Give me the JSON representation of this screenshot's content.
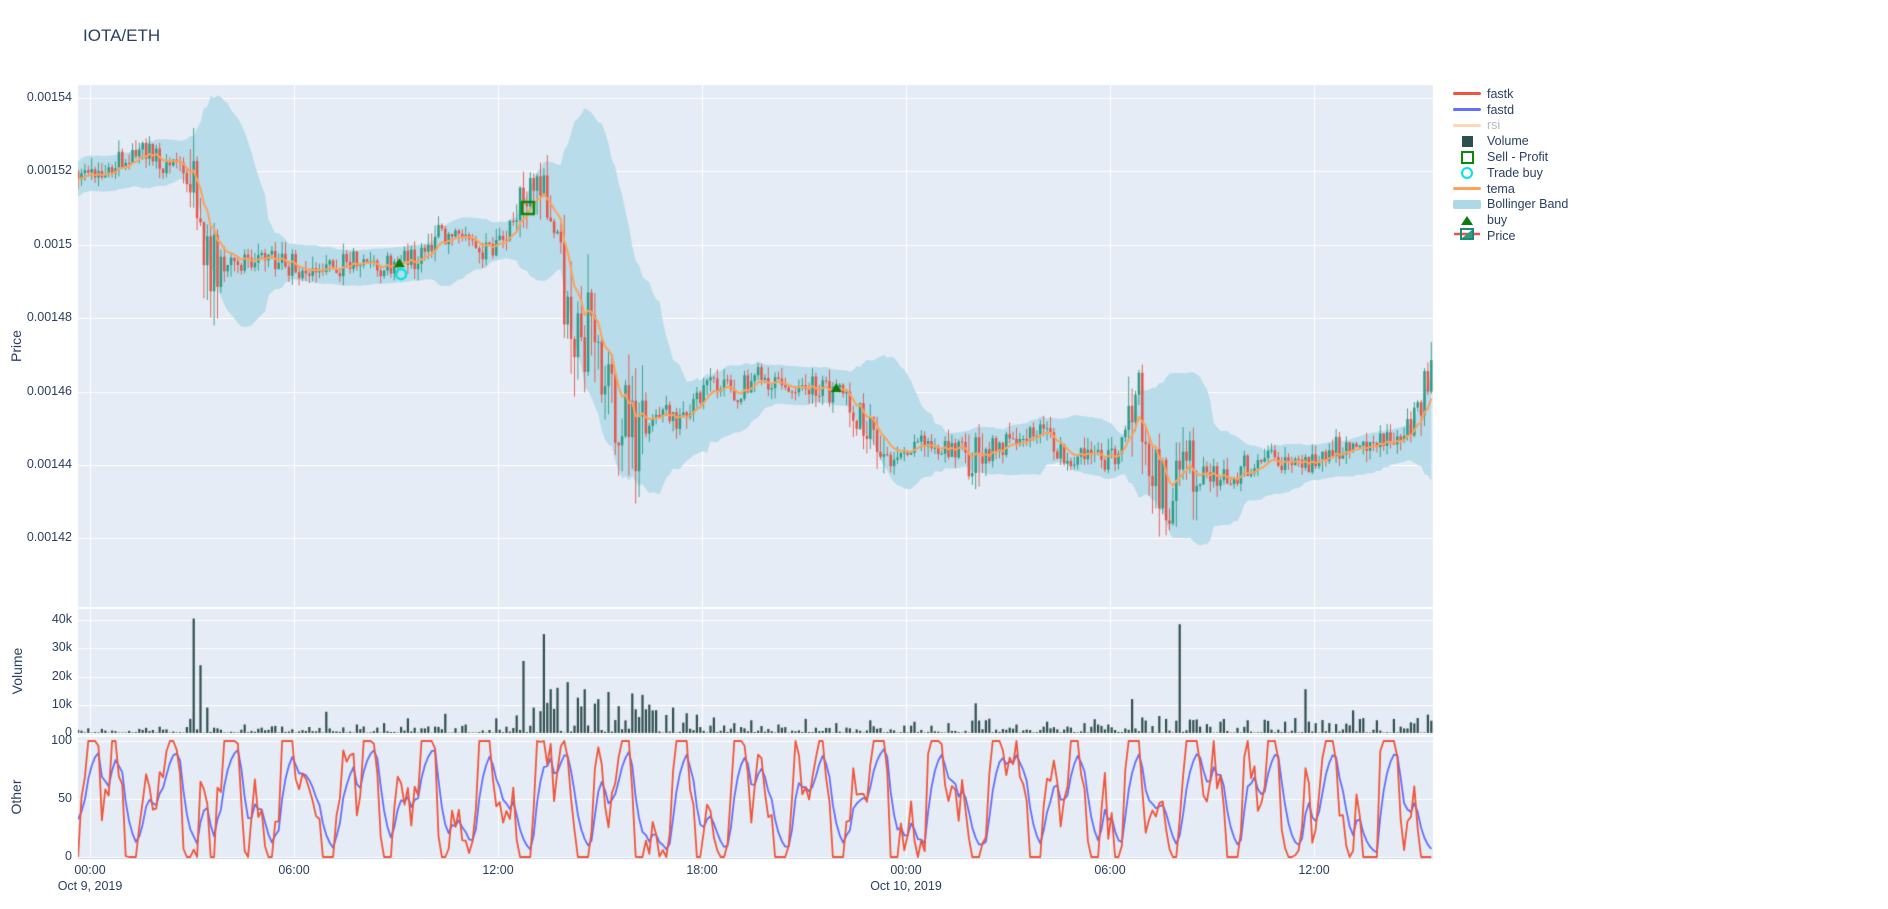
{
  "title": "IOTA/ETH",
  "colors": {
    "paper_bg": "#ffffff",
    "plot_bg": "#E6ECF5",
    "grid": "#ffffff",
    "text": "#2a3f5f",
    "faded_text": "#b2bac9",
    "candle_up": "#2E9C86",
    "candle_down": "#E4564A",
    "tema": "#FFA15A",
    "rsi": "#FFA15A",
    "bollinger": "rgba(173,216,230,0.82)",
    "volume_bar": "#2F4F4F",
    "fastk": "#EF553B",
    "fastd": "#636EFA",
    "buy_marker": "#0a7d0a",
    "sell_profit_marker": "#0a8a0a",
    "trade_buy_marker": "#00e5e5"
  },
  "axes": {
    "price": {
      "title": "Price",
      "ticks": [
        "0.00154",
        "0.00152",
        "0.0015",
        "0.00148",
        "0.00146",
        "0.00144",
        "0.00142"
      ],
      "tick_values": [
        0.00154,
        0.00152,
        0.0015,
        0.00148,
        0.00146,
        0.00144,
        0.00142
      ]
    },
    "volume": {
      "title": "Volume",
      "ticks": [
        "40k",
        "30k",
        "20k",
        "10k",
        "0"
      ],
      "tick_values": [
        40000,
        30000,
        20000,
        10000,
        0
      ]
    },
    "other": {
      "title": "Other",
      "ticks": [
        "100",
        "50",
        "0"
      ],
      "tick_values": [
        100,
        50,
        0
      ]
    },
    "x": {
      "ticks": [
        "00:00",
        "06:00",
        "12:00",
        "18:00",
        "00:00",
        "06:00",
        "12:00"
      ],
      "tick_hours": [
        0,
        6,
        12,
        18,
        24,
        30,
        36
      ],
      "dates": [
        {
          "label": "Oct 9, 2019",
          "hour": 0
        },
        {
          "label": "Oct 10, 2019",
          "hour": 24
        }
      ]
    }
  },
  "legend": {
    "items": [
      {
        "label": "fastk",
        "glyph": "line",
        "color": "#EF553B",
        "faded": false
      },
      {
        "label": "fastd",
        "glyph": "line",
        "color": "#636EFA",
        "faded": false
      },
      {
        "label": "rsi",
        "glyph": "line",
        "color": "#FFA15A",
        "faded": true
      },
      {
        "label": "Volume",
        "glyph": "square",
        "color": "#2F4F4F",
        "faded": false
      },
      {
        "label": "Sell - Profit",
        "glyph": "square-open",
        "color": "#0a8a0a",
        "faded": false
      },
      {
        "label": "Trade buy",
        "glyph": "circle-open",
        "color": "#00e5e5",
        "faded": false
      },
      {
        "label": "tema",
        "glyph": "line",
        "color": "#FFA15A",
        "faded": false
      },
      {
        "label": "Bollinger Band",
        "glyph": "band",
        "color": "#ADD8E6",
        "faded": false
      },
      {
        "label": "buy",
        "glyph": "triangle",
        "color": "#0a7d0a",
        "faded": false
      },
      {
        "label": "Price",
        "glyph": "candle",
        "color": "#2E9C86",
        "faded": false
      }
    ]
  },
  "chart_data": {
    "type": "candlestick",
    "title": "IOTA/ETH",
    "x_origin": "Oct 9, 2019 00:00",
    "x_range_hours": [
      -0.35,
      39.5
    ],
    "candle_minutes": 6,
    "price_ylim": [
      0.0014013,
      0.0015435
    ],
    "volume_ylim": [
      0,
      44000
    ],
    "other_ylim": [
      0,
      100
    ],
    "price_keypoints": [
      [
        -0.4,
        0.00152
      ],
      [
        0,
        0.00152
      ],
      [
        0.7,
        0.001522
      ],
      [
        1.4,
        0.001526
      ],
      [
        1.8,
        0.001524
      ],
      [
        2.3,
        0.001522
      ],
      [
        2.7,
        0.001521
      ],
      [
        3.0,
        0.001516
      ],
      [
        3.2,
        0.001504
      ],
      [
        3.5,
        0.001494
      ],
      [
        4.0,
        0.001496
      ],
      [
        4.6,
        0.001494
      ],
      [
        5.2,
        0.001496
      ],
      [
        6.0,
        0.001494
      ],
      [
        6.6,
        0.001495
      ],
      [
        7.2,
        0.001494
      ],
      [
        7.7,
        0.001496
      ],
      [
        8.3,
        0.001494
      ],
      [
        9.0,
        0.001494
      ],
      [
        9.6,
        0.001497
      ],
      [
        10.2,
        0.001503
      ],
      [
        10.7,
        0.001504
      ],
      [
        11.2,
        0.001498
      ],
      [
        11.7,
        0.001497
      ],
      [
        12.2,
        0.001503
      ],
      [
        12.7,
        0.00151
      ],
      [
        13.1,
        0.001514
      ],
      [
        13.4,
        0.001512
      ],
      [
        13.7,
        0.001503
      ],
      [
        14.0,
        0.001488
      ],
      [
        14.3,
        0.001472
      ],
      [
        14.6,
        0.001478
      ],
      [
        14.9,
        0.00147
      ],
      [
        15.3,
        0.001462
      ],
      [
        15.7,
        0.001452
      ],
      [
        16.1,
        0.001446
      ],
      [
        16.5,
        0.00145
      ],
      [
        16.9,
        0.001455
      ],
      [
        17.3,
        0.001453
      ],
      [
        17.7,
        0.001456
      ],
      [
        18.1,
        0.00146
      ],
      [
        18.6,
        0.001462
      ],
      [
        19.1,
        0.00146
      ],
      [
        19.6,
        0.001464
      ],
      [
        20.1,
        0.001461
      ],
      [
        20.6,
        0.001459
      ],
      [
        21.1,
        0.001462
      ],
      [
        21.6,
        0.00146
      ],
      [
        22.0,
        0.001461
      ],
      [
        22.4,
        0.001455
      ],
      [
        22.9,
        0.001449
      ],
      [
        23.4,
        0.001444
      ],
      [
        24.0,
        0.001446
      ],
      [
        24.5,
        0.001448
      ],
      [
        25.0,
        0.001444
      ],
      [
        25.5,
        0.001443
      ],
      [
        25.9,
        0.001447
      ],
      [
        26.15,
        0.001439
      ],
      [
        26.5,
        0.001444
      ],
      [
        27.0,
        0.001447
      ],
      [
        27.5,
        0.00145
      ],
      [
        28.0,
        0.001448
      ],
      [
        28.6,
        0.001444
      ],
      [
        29.1,
        0.001441
      ],
      [
        29.6,
        0.001443
      ],
      [
        30.1,
        0.001441
      ],
      [
        30.6,
        0.001449
      ],
      [
        30.85,
        0.001455
      ],
      [
        31.1,
        0.001446
      ],
      [
        31.45,
        0.001437
      ],
      [
        31.8,
        0.001434
      ],
      [
        32.1,
        0.00144
      ],
      [
        32.5,
        0.001437
      ],
      [
        33.0,
        0.001438
      ],
      [
        33.5,
        0.001436
      ],
      [
        34.0,
        0.00144
      ],
      [
        34.5,
        0.001442
      ],
      [
        35.0,
        0.001441
      ],
      [
        35.6,
        0.00144
      ],
      [
        36.1,
        0.001443
      ],
      [
        36.6,
        0.001444
      ],
      [
        37.1,
        0.001446
      ],
      [
        37.6,
        0.001445
      ],
      [
        38.1,
        0.001448
      ],
      [
        38.6,
        0.001449
      ],
      [
        39.0,
        0.001453
      ],
      [
        39.25,
        0.001461
      ],
      [
        39.45,
        0.001465
      ]
    ],
    "volatility_ranges": [
      [
        2.9,
        3.8,
        3.5
      ],
      [
        12.5,
        13.6,
        2.2
      ],
      [
        13.8,
        16.3,
        3.5
      ],
      [
        22.3,
        23.6,
        1.6
      ],
      [
        25.8,
        26.4,
        2.8
      ],
      [
        30.5,
        32.6,
        3.0
      ],
      [
        39.0,
        39.5,
        2.0
      ]
    ],
    "volume_spikes": [
      [
        2.95,
        5000
      ],
      [
        3.1,
        40500
      ],
      [
        3.25,
        24000
      ],
      [
        3.45,
        9000
      ],
      [
        4.6,
        3000
      ],
      [
        5.4,
        2500
      ],
      [
        6.9,
        7500
      ],
      [
        7.8,
        3000
      ],
      [
        8.6,
        3500
      ],
      [
        9.3,
        5200
      ],
      [
        10.4,
        6800
      ],
      [
        11.0,
        3000
      ],
      [
        11.9,
        5200
      ],
      [
        12.7,
        25500
      ],
      [
        13.0,
        9000
      ],
      [
        13.35,
        35000
      ],
      [
        13.5,
        15500
      ],
      [
        13.75,
        16000
      ],
      [
        14.05,
        18000
      ],
      [
        14.3,
        12500
      ],
      [
        14.55,
        15500
      ],
      [
        14.9,
        12000
      ],
      [
        15.2,
        14500
      ],
      [
        15.55,
        9500
      ],
      [
        15.9,
        14000
      ],
      [
        16.2,
        13500
      ],
      [
        16.55,
        8000
      ],
      [
        17.1,
        9000
      ],
      [
        17.5,
        7000
      ],
      [
        17.8,
        6500
      ],
      [
        18.3,
        5500
      ],
      [
        19.0,
        3500
      ],
      [
        19.5,
        4500
      ],
      [
        20.3,
        3000
      ],
      [
        21.1,
        5000
      ],
      [
        22.0,
        3500
      ],
      [
        23.0,
        4500
      ],
      [
        24.3,
        4000
      ],
      [
        25.3,
        3500
      ],
      [
        26.1,
        10500
      ],
      [
        26.35,
        4500
      ],
      [
        27.3,
        3000
      ],
      [
        28.2,
        4000
      ],
      [
        29.3,
        3500
      ],
      [
        30.0,
        3000
      ],
      [
        30.7,
        12000
      ],
      [
        31.0,
        5500
      ],
      [
        31.45,
        6000
      ],
      [
        31.7,
        5000
      ],
      [
        32.1,
        38500
      ],
      [
        32.4,
        4500
      ],
      [
        33.3,
        4000
      ],
      [
        34.1,
        4500
      ],
      [
        35.2,
        4000
      ],
      [
        35.8,
        15500
      ],
      [
        36.5,
        3500
      ],
      [
        37.2,
        8000
      ],
      [
        37.9,
        4500
      ],
      [
        38.4,
        5000
      ],
      [
        39.1,
        4000
      ],
      [
        39.35,
        6500
      ]
    ],
    "volume_elevated_ranges": [
      [
        12.4,
        17.6,
        4.5
      ],
      [
        25.5,
        26.5,
        2.0
      ],
      [
        29.5,
        33.5,
        2.0
      ],
      [
        34.5,
        39.5,
        2.2
      ]
    ],
    "markers": {
      "buy": [
        {
          "t": 9.1,
          "price": 0.001495
        },
        {
          "t": 21.95,
          "price": 0.001461
        }
      ],
      "trade_buy": [
        {
          "t": 9.15,
          "price": 0.001492
        }
      ],
      "sell_profit": [
        {
          "t": 12.88,
          "price": 0.00151
        }
      ]
    },
    "synth": {
      "seed": 1337,
      "price_noise": 3.5e-06,
      "wick_noise": 3.2e-06,
      "tema_span": 9,
      "bollinger": {
        "window": 22,
        "k": 2.2,
        "min_std": 2.2e-06
      },
      "volume_base": 2500,
      "osc": {
        "periods": [
          1.9,
          0.83
        ],
        "amps": [
          55,
          45
        ],
        "phases": [
          0.6,
          1.8
        ],
        "noise": 30,
        "fastd_alpha": 0.35
      }
    }
  }
}
